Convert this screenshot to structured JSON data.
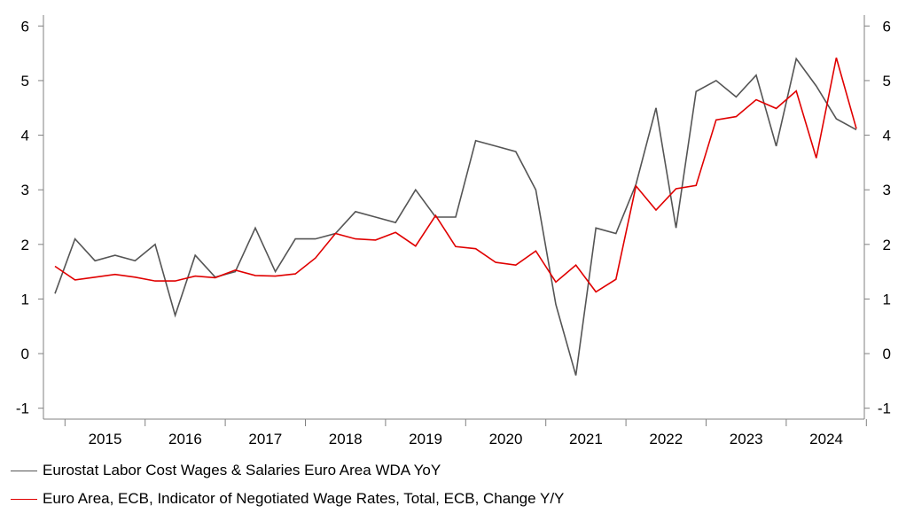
{
  "chart_data": {
    "type": "line",
    "title": "",
    "xlabel": "",
    "ylabel": "",
    "x_tick_labels": [
      "2015",
      "2016",
      "2017",
      "2018",
      "2019",
      "2020",
      "2021",
      "2022",
      "2023",
      "2024"
    ],
    "quarters": [
      "2014Q4",
      "2015Q1",
      "2015Q2",
      "2015Q3",
      "2015Q4",
      "2016Q1",
      "2016Q2",
      "2016Q3",
      "2016Q4",
      "2017Q1",
      "2017Q2",
      "2017Q3",
      "2017Q4",
      "2018Q1",
      "2018Q2",
      "2018Q3",
      "2018Q4",
      "2019Q1",
      "2019Q2",
      "2019Q3",
      "2019Q4",
      "2020Q1",
      "2020Q2",
      "2020Q3",
      "2020Q4",
      "2021Q1",
      "2021Q2",
      "2021Q3",
      "2021Q4",
      "2022Q1",
      "2022Q2",
      "2022Q3",
      "2022Q4",
      "2023Q1",
      "2023Q2",
      "2023Q3",
      "2023Q4",
      "2024Q1",
      "2024Q2",
      "2024Q3",
      "2024Q4"
    ],
    "ylim": [
      -1.2,
      6.2
    ],
    "y_ticks": [
      -1,
      0,
      1,
      2,
      3,
      4,
      5,
      6
    ],
    "y_tick_labels": [
      "-1",
      "0",
      "1",
      "2",
      "3",
      "4",
      "5",
      "6"
    ],
    "grid": false,
    "legend_position": "bottom",
    "series": [
      {
        "name": "Eurostat Labor Cost Wages & Salaries Euro Area WDA YoY",
        "color": "#555555",
        "values": [
          1.1,
          2.1,
          1.7,
          1.8,
          1.7,
          2.0,
          0.7,
          1.8,
          1.4,
          1.5,
          2.3,
          1.5,
          2.1,
          2.1,
          2.2,
          2.6,
          2.5,
          2.4,
          3.0,
          2.5,
          2.5,
          3.9,
          3.8,
          3.7,
          3.0,
          0.9,
          -0.4,
          2.3,
          2.2,
          3.1,
          4.5,
          2.3,
          4.8,
          5.0,
          4.7,
          5.1,
          3.8,
          5.4,
          4.9,
          4.3,
          4.1
        ]
      },
      {
        "name": "Euro Area, ECB, Indicator of Negotiated Wage Rates, Total, ECB, Change Y/Y",
        "color": "#e00000",
        "values": [
          1.6,
          1.35,
          1.4,
          1.45,
          1.4,
          1.33,
          1.33,
          1.42,
          1.39,
          1.53,
          1.43,
          1.42,
          1.46,
          1.75,
          2.2,
          2.1,
          2.08,
          2.22,
          1.97,
          2.53,
          1.96,
          1.92,
          1.67,
          1.62,
          1.88,
          1.31,
          1.62,
          1.13,
          1.36,
          3.07,
          2.63,
          3.02,
          3.08,
          4.28,
          4.34,
          4.65,
          4.49,
          4.81,
          3.58,
          5.42,
          4.12
        ]
      }
    ]
  }
}
